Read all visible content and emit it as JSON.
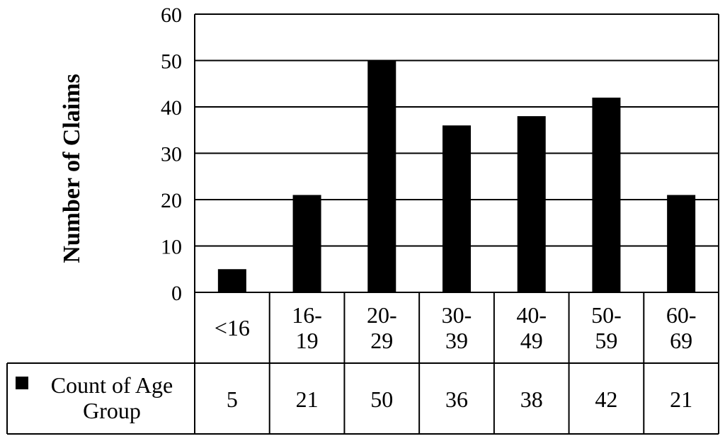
{
  "chart_data": {
    "type": "bar",
    "title": "",
    "xlabel": "",
    "ylabel": "Number of Claims",
    "ylim": [
      0,
      60
    ],
    "yticks": [
      0,
      10,
      20,
      30,
      40,
      50,
      60
    ],
    "grid": "horizontal",
    "legend_position": "data-table-left",
    "categories": [
      [
        "<16"
      ],
      [
        "16-",
        "19"
      ],
      [
        "20-",
        "29"
      ],
      [
        "30-",
        "39"
      ],
      [
        "40-",
        "49"
      ],
      [
        "50-",
        "59"
      ],
      [
        "60-",
        "69"
      ]
    ],
    "series": [
      {
        "name": [
          "Count of Age",
          "Group"
        ],
        "color": "#000000",
        "values": [
          5,
          21,
          50,
          36,
          38,
          42,
          21
        ]
      }
    ]
  }
}
